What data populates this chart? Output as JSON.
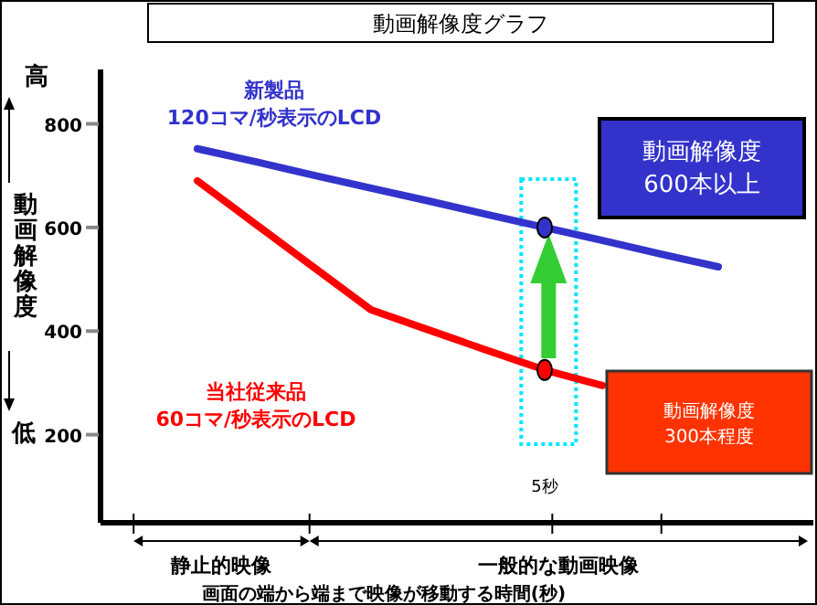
{
  "chart_data": {
    "type": "line",
    "title": "動画解像度グラフ",
    "ylabel": "動画解像度",
    "xlabel": "画面の端から端まで映像が移動する時間(秒)",
    "categories": [
      null,
      null,
      null,
      null,
      null,
      null,
      "5秒",
      null,
      null,
      null
    ],
    "ylim": [
      30,
      905
    ],
    "yticks": [
      200,
      400,
      600,
      800
    ],
    "grid": false,
    "series": [
      {
        "name": "新製品\n120コマ/秒表示のLCD",
        "color": "#3333cc",
        "values": [
          752,
          727,
          701,
          676,
          651,
          625,
          600,
          575,
          549,
          524
        ]
      },
      {
        "name": "当社従来品\n60コマ/秒表示のLCD",
        "color": "#ff0000",
        "values": [
          690,
          607,
          524,
          441,
          402,
          363,
          325,
          295,
          null,
          null
        ]
      },
      {
        "type": "scatter",
        "color": "#3333cc",
        "marker": "circle",
        "values": [
          null,
          null,
          null,
          null,
          null,
          null,
          600,
          null,
          null,
          null
        ]
      },
      {
        "type": "scatter",
        "color": "#ff0000",
        "marker": "circle",
        "values": [
          null,
          null,
          null,
          null,
          null,
          null,
          325,
          null,
          null,
          null
        ]
      }
    ],
    "annotations": [
      "高",
      "低",
      "動画解像度\n600本以上",
      "動画解像度\n300本程度",
      "静止的映像",
      "一般的な動画映像"
    ]
  }
}
